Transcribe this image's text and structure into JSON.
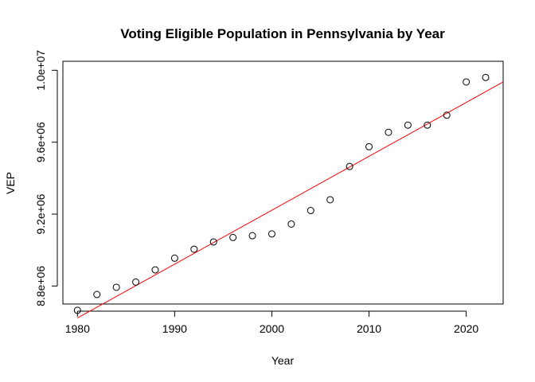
{
  "chart_data": {
    "type": "scatter",
    "title": "Voting Eligible Population in Pennsylvania by Year",
    "xlabel": "Year",
    "ylabel": "VEP",
    "xlim": [
      1978.5,
      2023.8
    ],
    "ylim": [
      8700000,
      10050000
    ],
    "x_ticks": [
      1980,
      1990,
      2000,
      2010,
      2020
    ],
    "x_tick_labels": [
      "1980",
      "1990",
      "2000",
      "2010",
      "2020"
    ],
    "y_ticks": [
      8800000,
      9200000,
      9600000,
      10000000
    ],
    "y_tick_labels": [
      "8.8e+06",
      "9.2e+06",
      "9.6e+06",
      "1.0e+07"
    ],
    "grid": false,
    "legend": "none",
    "series": [
      {
        "x": [
          1980,
          1982,
          1984,
          1986,
          1988,
          1990,
          1992,
          1994,
          1996,
          1998,
          2000,
          2002,
          2004,
          2006,
          2008,
          2010,
          2012,
          2014,
          2016,
          2018,
          2020,
          2022
        ],
        "y": [
          8665000,
          8753000,
          8793000,
          8822000,
          8890000,
          8955000,
          9005000,
          9045000,
          9070000,
          9080000,
          9090000,
          9145000,
          9220000,
          9280000,
          9465000,
          9575000,
          9655000,
          9695000,
          9695000,
          9750000,
          9935000,
          9960000
        ],
        "marker": "open-circle",
        "color": "#000000"
      }
    ],
    "fit_line": {
      "type": "linear-regression",
      "color": "#ff0000",
      "points": [
        {
          "x": 1980,
          "y": 8622000
        },
        {
          "x": 2023.8,
          "y": 9935000
        }
      ]
    }
  }
}
